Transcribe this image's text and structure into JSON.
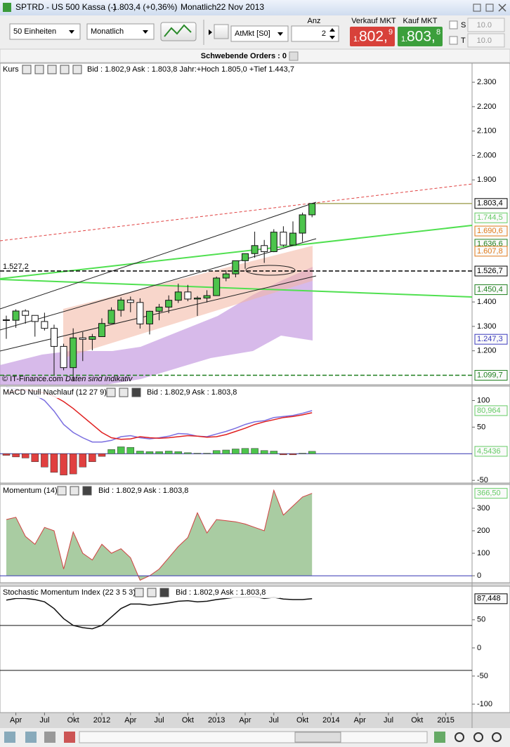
{
  "window": {
    "symbol": "SPTRD - US 500 Kassa (-)",
    "quote": "1.803,4 (+0,36%)",
    "period": "Monatlich",
    "date": "22 Nov 2013"
  },
  "toolbar": {
    "size": "50 Einheiten",
    "period": "Monatlich",
    "order_type": "AtMkt [S0]",
    "quantity_label": "Anz",
    "quantity": "2",
    "sell": {
      "label": "Verkauf MKT",
      "prefix": "1.",
      "main": "802,",
      "suffix": "9"
    },
    "buy": {
      "label": "Kauf MKT",
      "prefix": "1.",
      "main": "803,",
      "suffix": "8"
    },
    "stop": {
      "label": "S",
      "value": "10.0"
    },
    "target": {
      "label": "T",
      "value": "10.0"
    }
  },
  "orders_bar": "Schwebende Orders : 0",
  "x_axis": {
    "xlim": [
      1.34,
      50.75
    ],
    "xticks": [
      {
        "value": 3,
        "label": "Apr"
      },
      {
        "value": 6,
        "label": "Jul"
      },
      {
        "value": 9,
        "label": "Okt"
      },
      {
        "value": 12,
        "label": "2012"
      },
      {
        "value": 15,
        "label": "Apr"
      },
      {
        "value": 18,
        "label": "Jul"
      },
      {
        "value": 21,
        "label": "Okt"
      },
      {
        "value": 24,
        "label": "2013"
      },
      {
        "value": 27,
        "label": "Apr"
      },
      {
        "value": 30,
        "label": "Jul"
      },
      {
        "value": 33,
        "label": "Okt"
      },
      {
        "value": 36,
        "label": "2014"
      },
      {
        "value": 39,
        "label": "Apr"
      },
      {
        "value": 42,
        "label": "Jul"
      },
      {
        "value": 45,
        "label": "Okt"
      },
      {
        "value": 48,
        "label": "2015"
      }
    ]
  },
  "panels": [
    {
      "type": "candlestick",
      "title": "Kurs",
      "info": "Bid : 1.802,9 Ask : 1.803,8 Jahr:+Hoch 1.805,0 +Tief 1.443,7",
      "ylim": [
        1061,
        2378
      ],
      "yticks": [
        {
          "value": 2300,
          "label": "2.300"
        },
        {
          "value": 2200,
          "label": "2.200"
        },
        {
          "value": 2100,
          "label": "2.100"
        },
        {
          "value": 2000,
          "label": "2.000"
        },
        {
          "value": 1900,
          "label": "1.900"
        },
        {
          "value": 1400,
          "label": "1.400"
        },
        {
          "value": 1300,
          "label": "1.300"
        },
        {
          "value": 1200,
          "label": "1.200"
        }
      ],
      "up_color": "#4cc44c",
      "down_color": "#ffffff",
      "x": [
        2,
        3,
        4,
        5,
        6,
        7,
        8,
        9,
        10,
        11,
        12,
        13,
        14,
        15,
        16,
        17,
        18,
        19,
        20,
        21,
        22,
        23,
        24,
        25,
        26,
        27,
        28,
        29,
        30,
        31,
        32,
        33,
        34
      ],
      "open": [
        1327,
        1325,
        1363,
        1345,
        1320,
        1292,
        1218,
        1131,
        1253,
        1247,
        1258,
        1312,
        1366,
        1408,
        1398,
        1310,
        1362,
        1379,
        1407,
        1441,
        1412,
        1416,
        1426,
        1498,
        1515,
        1569,
        1598,
        1631,
        1606,
        1686,
        1633,
        1682,
        1757
      ],
      "high": [
        1344,
        1370,
        1370,
        1345,
        1356,
        1307,
        1229,
        1292,
        1277,
        1269,
        1333,
        1378,
        1419,
        1422,
        1415,
        1364,
        1392,
        1427,
        1475,
        1470,
        1424,
        1448,
        1504,
        1530,
        1570,
        1598,
        1688,
        1654,
        1698,
        1710,
        1730,
        1766,
        1805
      ],
      "low": [
        1249,
        1294,
        1311,
        1258,
        1283,
        1101,
        1120,
        1075,
        1158,
        1202,
        1258,
        1312,
        1340,
        1358,
        1291,
        1267,
        1325,
        1354,
        1396,
        1403,
        1343,
        1398,
        1426,
        1485,
        1501,
        1536,
        1581,
        1560,
        1604,
        1627,
        1633,
        1646,
        1747
      ],
      "close": [
        1325,
        1363,
        1345,
        1320,
        1292,
        1218,
        1131,
        1253,
        1247,
        1258,
        1312,
        1366,
        1408,
        1398,
        1310,
        1362,
        1379,
        1407,
        1441,
        1412,
        1416,
        1426,
        1498,
        1515,
        1569,
        1598,
        1631,
        1606,
        1686,
        1633,
        1682,
        1757,
        1803.4
      ],
      "tags": [
        {
          "value": 1803.4,
          "label": "1.803,4",
          "color": "#000000",
          "line": "solid"
        },
        {
          "value": 1744.5,
          "label": "1.744,5",
          "color": "#66cc66"
        },
        {
          "value": 1690.6,
          "label": "1.690,6",
          "color": "#e07a1a"
        },
        {
          "value": 1636.6,
          "label": "1.636,6",
          "color": "#1f7f1f"
        },
        {
          "value": 1607.8,
          "label": "1.607,8",
          "color": "#e07a1a"
        },
        {
          "value": 1526.7,
          "label": "1.526,7",
          "color": "#000000",
          "line": "dashed"
        },
        {
          "value": 1450.4,
          "label": "1.450,4",
          "color": "#1f7f1f"
        },
        {
          "value": 1247.3,
          "label": "1.247,3",
          "color": "#3b3bbd"
        },
        {
          "value": 1099.7,
          "label": "1.099,7",
          "color": "#1f7f1f",
          "line": "dashed"
        }
      ],
      "marker": {
        "value": 1527.2,
        "label": "1.527,2"
      },
      "copyright": "© IT-Finance.com",
      "note": "Daten sind indikativ"
    },
    {
      "type": "macd",
      "title": "MACD Null Nachlauf (12 27 9)",
      "info": "Bid : 1.802,9 Ask : 1.803,8",
      "ylim": [
        -55,
        127
      ],
      "yticks": [
        100,
        50,
        -50
      ],
      "baseline": 0,
      "x": [
        2,
        3,
        4,
        5,
        6,
        7,
        8,
        9,
        10,
        11,
        12,
        13,
        14,
        15,
        16,
        17,
        18,
        19,
        20,
        21,
        22,
        23,
        24,
        25,
        26,
        27,
        28,
        29,
        30,
        31,
        32,
        33,
        34
      ],
      "series": [
        {
          "color": "#7a6ee0",
          "values": [
            125,
            122,
            118,
            110,
            100,
            80,
            55,
            40,
            30,
            22,
            22,
            25,
            32,
            34,
            30,
            28,
            30,
            33,
            38,
            37,
            33,
            32,
            37,
            42,
            48,
            55,
            60,
            62,
            68,
            70,
            72,
            76,
            80.964
          ]
        },
        {
          "color": "#e02020",
          "values": [
            115,
            118,
            120,
            118,
            114,
            108,
            98,
            85,
            70,
            55,
            40,
            30,
            27,
            28,
            32,
            30,
            29,
            30,
            32,
            34,
            33,
            31,
            32,
            36,
            42,
            48,
            55,
            60,
            64,
            68,
            70,
            73,
            77
          ]
        }
      ],
      "histogram": {
        "up_color": "#4cc44c",
        "down_color": "#e04040",
        "values": [
          -3,
          -6,
          -8,
          -15,
          -25,
          -35,
          -40,
          -38,
          -25,
          -15,
          -5,
          8,
          13,
          12,
          5,
          4,
          4,
          5,
          4,
          2,
          1,
          1,
          6,
          7,
          9,
          10,
          10,
          6,
          5,
          -2,
          -2,
          1,
          4.5436
        ]
      },
      "tags": [
        {
          "value": 80.964,
          "label": "80,964",
          "color": "#66cc66"
        },
        {
          "value": 4.5436,
          "label": "4,5436",
          "color": "#66cc66"
        }
      ]
    },
    {
      "type": "area",
      "title": "Momentum (14)",
      "info": "Bid : 1.802,9 Ask : 1.803,8",
      "ylim": [
        -31,
        406
      ],
      "yticks": [
        300,
        200,
        100,
        0
      ],
      "baseline": 0,
      "x": [
        2,
        3,
        4,
        5,
        6,
        7,
        8,
        9,
        10,
        11,
        12,
        13,
        14,
        15,
        16,
        17,
        18,
        19,
        20,
        21,
        22,
        23,
        24,
        25,
        26,
        27,
        28,
        29,
        30,
        31,
        32,
        33,
        34
      ],
      "fill": "#a9cca2",
      "color": "#d04040",
      "values": [
        250,
        260,
        175,
        140,
        215,
        200,
        30,
        195,
        100,
        70,
        140,
        100,
        120,
        80,
        -20,
        0,
        30,
        80,
        130,
        170,
        280,
        190,
        250,
        245,
        240,
        230,
        215,
        200,
        380,
        270,
        310,
        350,
        366.5
      ],
      "tags": [
        {
          "value": 366.5,
          "label": "366,50",
          "color": "#66cc66"
        }
      ]
    },
    {
      "type": "line",
      "title": "Stochastic Momentum Index (22 3 5 3)",
      "info": "Bid : 1.802,9 Ask : 1.803,8",
      "ylim": [
        -115,
        109.7
      ],
      "yticks": [
        50,
        0,
        -50,
        -100
      ],
      "levels": [
        40,
        -40
      ],
      "x": [
        2,
        3,
        4,
        5,
        6,
        7,
        8,
        9,
        10,
        11,
        12,
        13,
        14,
        15,
        16,
        17,
        18,
        19,
        20,
        21,
        22,
        23,
        24,
        25,
        26,
        27,
        28,
        29,
        30,
        31,
        32,
        33,
        34
      ],
      "color": "#111111",
      "values": [
        85,
        88,
        88,
        86,
        82,
        70,
        52,
        40,
        36,
        34,
        40,
        55,
        70,
        78,
        78,
        76,
        78,
        80,
        83,
        84,
        82,
        83,
        86,
        88,
        90,
        90,
        91,
        88,
        90,
        87,
        86,
        86,
        87.448
      ],
      "tags": [
        {
          "value": 87.448,
          "label": "87,448",
          "color": "#000000"
        }
      ]
    }
  ]
}
